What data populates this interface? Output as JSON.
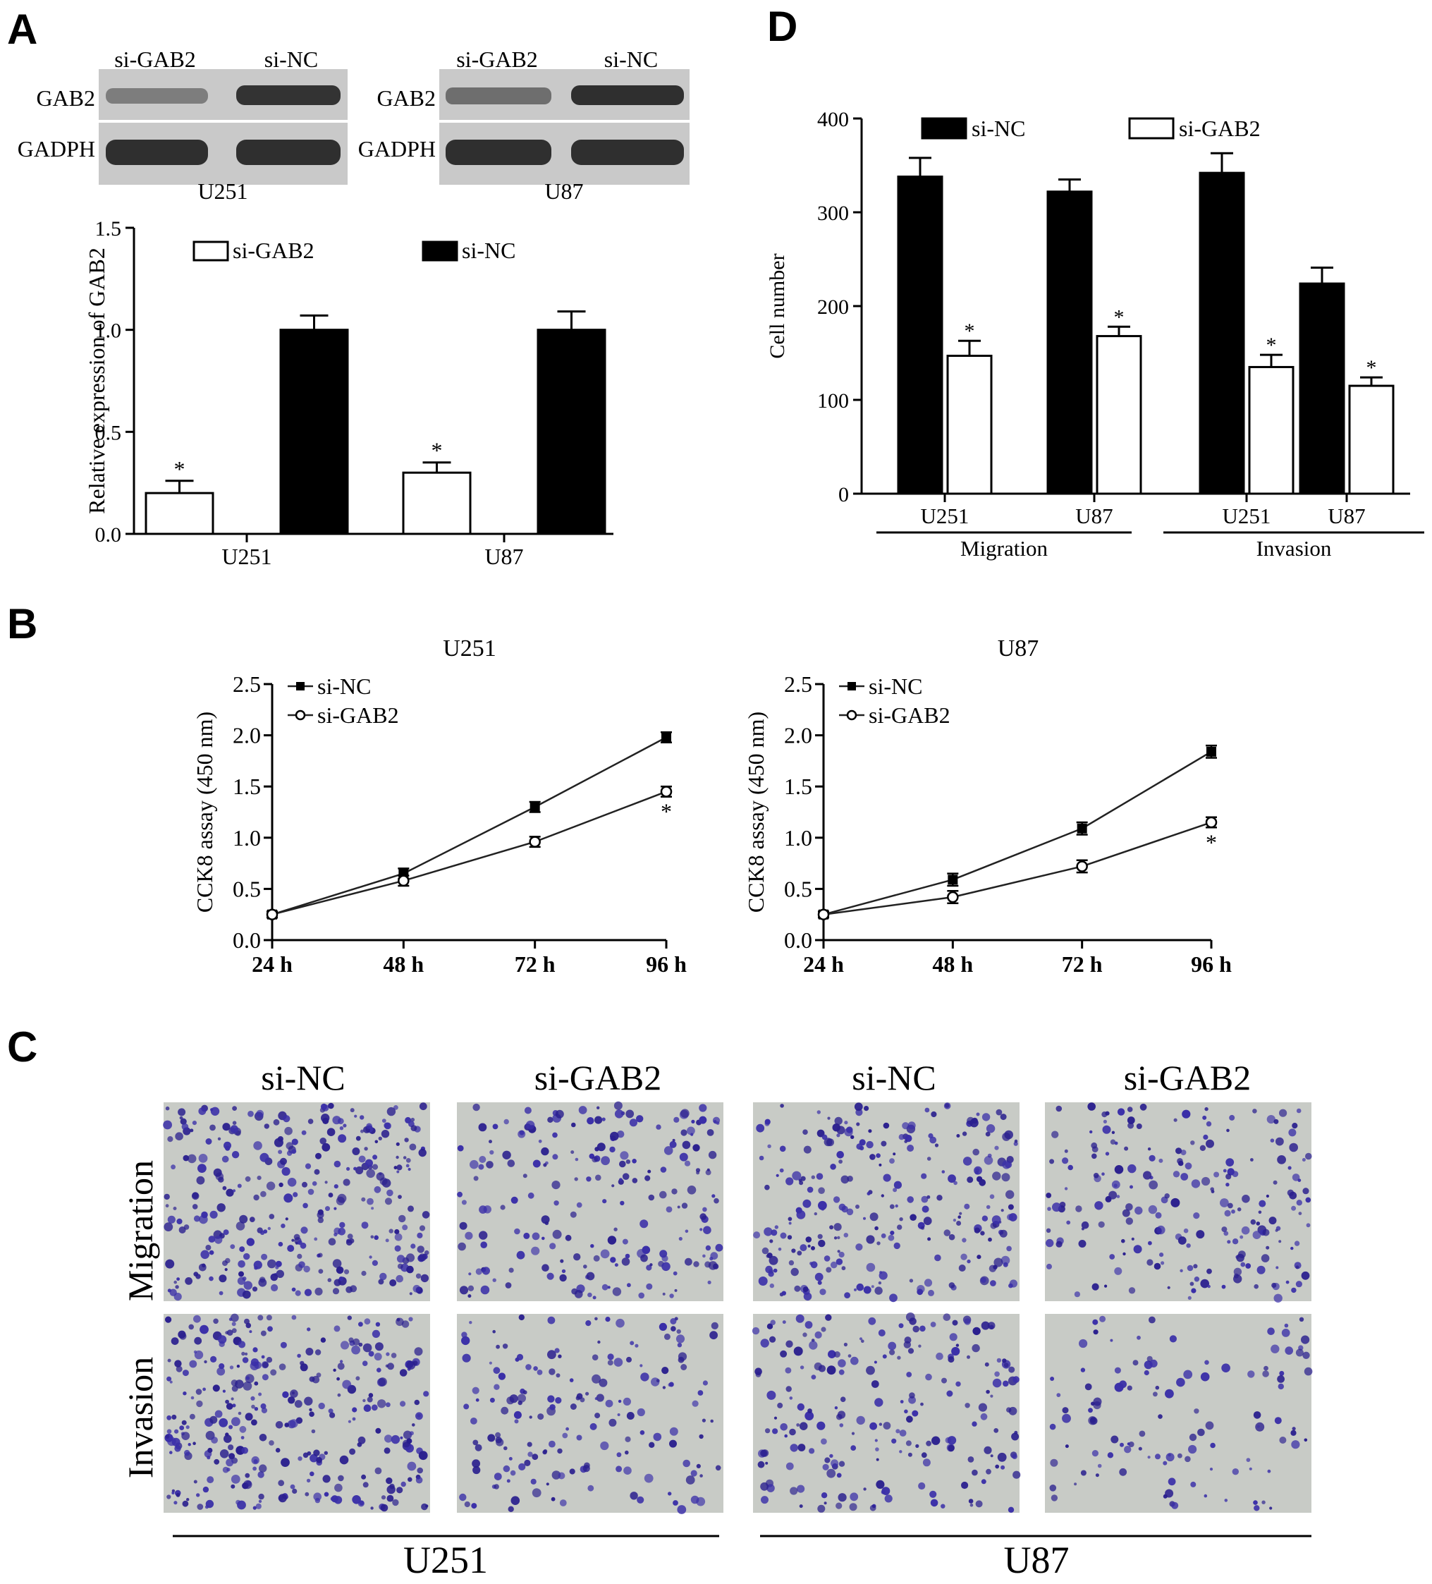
{
  "figure": {
    "panel_letters": [
      "A",
      "B",
      "C",
      "D"
    ],
    "blots": [
      {
        "cell_line": "U251",
        "lanes": [
          "si-GAB2",
          "si-NC"
        ],
        "rows": [
          "GAB2",
          "GADPH"
        ],
        "gab2_intensity": [
          0.45,
          0.9
        ],
        "gapdh_intensity": [
          0.92,
          0.92
        ]
      },
      {
        "cell_line": "U87",
        "lanes": [
          "si-GAB2",
          "si-NC"
        ],
        "rows": [
          "GAB2",
          "GADPH"
        ],
        "gab2_intensity": [
          0.55,
          0.92
        ],
        "gapdh_intensity": [
          0.92,
          0.92
        ]
      }
    ],
    "panel_c": {
      "columns": [
        "si-NC",
        "si-GAB2",
        "si-NC",
        "si-GAB2"
      ],
      "rows": [
        "Migration",
        "Invasion"
      ],
      "groups": [
        "U251",
        "U87"
      ],
      "cell_density": [
        [
          0.85,
          0.55,
          0.7,
          0.55
        ],
        [
          0.85,
          0.45,
          0.55,
          0.3
        ]
      ]
    },
    "colors": {
      "stain": "#3a2fa8",
      "stain_dark": "#2a1f8e",
      "field": "#c8cbc6",
      "blot": "#222222"
    }
  },
  "chart_data": [
    {
      "id": "A",
      "type": "bar",
      "categories": [
        "U251",
        "U87"
      ],
      "ylabel": "Relative expression of GAB2",
      "ylim": [
        0,
        1.5
      ],
      "yticks": [
        "0.0",
        "0.5",
        "1.0",
        "1.5"
      ],
      "legend": "top",
      "series": [
        {
          "name": "si-GAB2",
          "fill": "white",
          "values": [
            0.2,
            0.3
          ],
          "errors": [
            0.06,
            0.05
          ],
          "significance": [
            "*",
            "*"
          ]
        },
        {
          "name": "si-NC",
          "fill": "black",
          "values": [
            1.0,
            1.0
          ],
          "errors": [
            0.07,
            0.09
          ],
          "significance": [
            "",
            ""
          ]
        }
      ]
    },
    {
      "id": "B1",
      "type": "line",
      "title": "U251",
      "categories": [
        "24 h",
        "48 h",
        "72 h",
        "96 h"
      ],
      "ylabel": "CCK8 assay (450 nm)",
      "ylim": [
        0,
        2.5
      ],
      "yticks": [
        "0.0",
        "0.5",
        "1.0",
        "1.5",
        "2.0",
        "2.5"
      ],
      "legend": "top-left",
      "series": [
        {
          "name": "si-NC",
          "marker": "square",
          "values": [
            0.25,
            0.65,
            1.3,
            1.98
          ],
          "errors": [
            0.03,
            0.05,
            0.05,
            0.05
          ]
        },
        {
          "name": "si-GAB2",
          "marker": "circle",
          "values": [
            0.25,
            0.58,
            0.96,
            1.45
          ],
          "errors": [
            0.03,
            0.05,
            0.05,
            0.05
          ]
        }
      ],
      "annotation": "*"
    },
    {
      "id": "B2",
      "type": "line",
      "title": "U87",
      "categories": [
        "24 h",
        "48 h",
        "72 h",
        "96 h"
      ],
      "ylabel": "CCK8 assay (450 nm)",
      "ylim": [
        0,
        2.5
      ],
      "yticks": [
        "0.0",
        "0.5",
        "1.0",
        "1.5",
        "2.0",
        "2.5"
      ],
      "legend": "top-left",
      "series": [
        {
          "name": "si-NC",
          "marker": "square",
          "values": [
            0.25,
            0.59,
            1.09,
            1.84
          ],
          "errors": [
            0.03,
            0.06,
            0.06,
            0.06
          ]
        },
        {
          "name": "si-GAB2",
          "marker": "circle",
          "values": [
            0.25,
            0.42,
            0.72,
            1.15
          ],
          "errors": [
            0.03,
            0.06,
            0.06,
            0.05
          ]
        }
      ],
      "annotation": "*"
    },
    {
      "id": "D",
      "type": "bar",
      "categories": [
        "U251",
        "U87",
        "U251",
        "U87"
      ],
      "groups": [
        {
          "label": "Migration",
          "span": [
            0,
            1
          ]
        },
        {
          "label": "Invasion",
          "span": [
            2,
            3
          ]
        }
      ],
      "ylabel": "Cell number",
      "ylim": [
        0,
        400
      ],
      "yticks": [
        "0",
        "100",
        "200",
        "300",
        "400"
      ],
      "legend": "top",
      "series": [
        {
          "name": "si-NC",
          "fill": "black",
          "values": [
            338,
            322,
            342,
            224
          ],
          "errors": [
            20,
            13,
            21,
            17
          ],
          "significance": [
            "",
            "",
            "",
            ""
          ]
        },
        {
          "name": "si-GAB2",
          "fill": "white",
          "values": [
            147,
            168,
            135,
            115
          ],
          "errors": [
            16,
            10,
            13,
            9
          ],
          "significance": [
            "*",
            "*",
            "*",
            "*"
          ]
        }
      ]
    }
  ]
}
